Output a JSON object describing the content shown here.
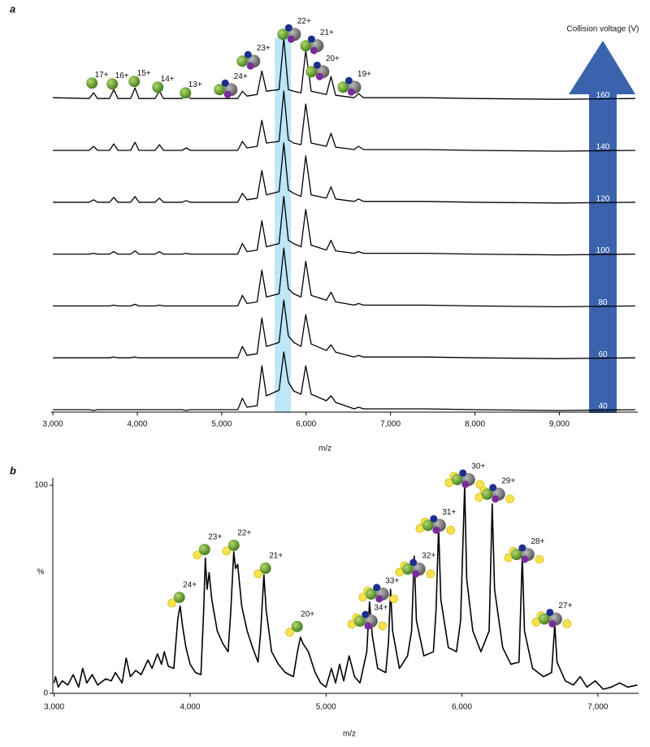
{
  "chart_data": [
    {
      "type": "line",
      "label": "a",
      "x_label": "m/z",
      "legend_title": "Collision voltage (V)",
      "x": [
        3000,
        3430,
        3482,
        3530,
        3670,
        3722,
        3770,
        3920,
        3973,
        4020,
        4210,
        4262,
        4310,
        4530,
        4580,
        4630,
        5190,
        5245,
        5300,
        5420,
        5476,
        5530,
        5680,
        5736,
        5790,
        5852,
        5940,
        5996,
        6060,
        6240,
        6295,
        6350,
        6570,
        6622,
        6680,
        7000,
        7400,
        8000,
        9000,
        9900
      ],
      "series": [
        {
          "name": "40",
          "color": "#000000",
          "values": [
            1,
            1,
            0,
            1,
            1,
            1,
            1,
            1,
            1,
            1,
            1,
            1,
            1,
            1,
            0,
            1,
            1,
            15,
            4,
            6,
            55,
            18,
            25,
            72,
            35,
            24,
            20,
            55,
            20,
            12,
            18,
            10,
            2,
            4,
            2,
            2,
            2,
            1,
            0,
            1
          ]
        },
        {
          "name": "60",
          "color": "#000000",
          "values": [
            1,
            1,
            1,
            1,
            1,
            2,
            1,
            1,
            2,
            1,
            1,
            1,
            1,
            1,
            1,
            1,
            1,
            15,
            4,
            6,
            50,
            15,
            20,
            72,
            28,
            20,
            15,
            54,
            18,
            10,
            17,
            8,
            2,
            4,
            2,
            2,
            2,
            1,
            0,
            1
          ]
        },
        {
          "name": "80",
          "color": "#000000",
          "values": [
            1,
            1,
            1,
            1,
            1,
            2,
            1,
            1,
            3,
            1,
            1,
            2,
            1,
            1,
            1,
            1,
            1,
            14,
            4,
            6,
            45,
            12,
            16,
            72,
            22,
            16,
            12,
            56,
            14,
            8,
            18,
            6,
            2,
            4,
            2,
            2,
            2,
            1,
            0,
            1
          ]
        },
        {
          "name": "100",
          "color": "#000000",
          "values": [
            1,
            1,
            2,
            1,
            1,
            4,
            1,
            1,
            5,
            1,
            1,
            4,
            1,
            1,
            2,
            1,
            1,
            14,
            4,
            6,
            42,
            10,
            14,
            72,
            18,
            14,
            10,
            56,
            12,
            6,
            18,
            5,
            2,
            4,
            2,
            2,
            2,
            1,
            0,
            1
          ]
        },
        {
          "name": "120",
          "color": "#000000",
          "values": [
            1,
            1,
            4,
            1,
            1,
            7,
            1,
            1,
            8,
            1,
            1,
            6,
            1,
            1,
            3,
            1,
            1,
            12,
            4,
            6,
            40,
            10,
            14,
            74,
            16,
            12,
            8,
            58,
            10,
            6,
            20,
            5,
            2,
            5,
            2,
            2,
            2,
            1,
            0,
            1
          ]
        },
        {
          "name": "140",
          "color": "#000000",
          "values": [
            1,
            1,
            6,
            1,
            1,
            9,
            1,
            1,
            11,
            1,
            1,
            8,
            1,
            1,
            4,
            1,
            1,
            12,
            4,
            6,
            38,
            10,
            12,
            74,
            14,
            10,
            8,
            58,
            10,
            6,
            22,
            5,
            2,
            6,
            2,
            2,
            2,
            1,
            0,
            1
          ]
        },
        {
          "name": "160",
          "color": "#000000",
          "values": [
            2,
            1,
            8,
            1,
            1,
            12,
            1,
            1,
            14,
            1,
            1,
            10,
            1,
            1,
            6,
            1,
            1,
            10,
            4,
            6,
            35,
            10,
            12,
            75,
            12,
            10,
            8,
            60,
            10,
            6,
            28,
            5,
            2,
            7,
            2,
            2,
            2,
            1,
            0,
            1
          ]
        }
      ],
      "xlim": [
        2980,
        9930
      ],
      "xticks": [
        {
          "value": 3000,
          "label": "3,000"
        },
        {
          "value": 4000,
          "label": "4,000"
        },
        {
          "value": 5000,
          "label": "5,000"
        },
        {
          "value": 6000,
          "label": "6,000"
        },
        {
          "value": 7000,
          "label": "7,000"
        },
        {
          "value": 8000,
          "label": "8,000"
        },
        {
          "value": 9000,
          "label": "9,000"
        }
      ],
      "highlight": {
        "x": [
          5630,
          5820
        ],
        "color": "#bde6f7"
      },
      "annotations": [
        {
          "text": "17+",
          "x": 3578,
          "y": 30
        },
        {
          "text": "16+",
          "x": 3819,
          "y": 29
        },
        {
          "text": "15+",
          "x": 4079,
          "y": 32
        },
        {
          "text": "14+",
          "x": 4358,
          "y": 25
        },
        {
          "text": "13+",
          "x": 4686,
          "y": 18
        },
        {
          "text": "24+",
          "x": 5225,
          "y": 28
        },
        {
          "text": "23+",
          "x": 5495,
          "y": 63
        },
        {
          "text": "22+",
          "x": 5977,
          "y": 96
        },
        {
          "text": "21+",
          "x": 6247,
          "y": 82
        },
        {
          "text": "20+",
          "x": 6314,
          "y": 50
        },
        {
          "text": "19+",
          "x": 6690,
          "y": 31
        }
      ]
    },
    {
      "type": "line",
      "label": "b",
      "x_label": "m/z",
      "y_label": "%",
      "x": [
        3000,
        3010,
        3030,
        3060,
        3100,
        3140,
        3180,
        3210,
        3240,
        3280,
        3320,
        3380,
        3420,
        3450,
        3500,
        3530,
        3560,
        3600,
        3640,
        3690,
        3720,
        3760,
        3790,
        3810,
        3840,
        3880,
        3910,
        3927,
        3945,
        3970,
        4000,
        4040,
        4080,
        4100,
        4112,
        4125,
        4140,
        4160,
        4200,
        4240,
        4280,
        4300,
        4321,
        4335,
        4350,
        4380,
        4420,
        4460,
        4500,
        4520,
        4543,
        4560,
        4600,
        4650,
        4700,
        4760,
        4790,
        4812,
        4830,
        4870,
        4920,
        4960,
        5000,
        5040,
        5070,
        5100,
        5130,
        5170,
        5210,
        5250,
        5300,
        5320,
        5340,
        5380,
        5440,
        5460,
        5475,
        5490,
        5540,
        5600,
        5630,
        5649,
        5665,
        5720,
        5790,
        5810,
        5828,
        5845,
        5900,
        5960,
        5990,
        6020,
        6035,
        6080,
        6140,
        6200,
        6223,
        6240,
        6300,
        6360,
        6420,
        6444,
        6460,
        6520,
        6600,
        6660,
        6683,
        6700,
        6760,
        6820,
        6870,
        6920,
        6980,
        7040,
        7100,
        7160,
        7220,
        7290
      ],
      "values": [
        5,
        8,
        3,
        6,
        4,
        9,
        3,
        12,
        5,
        9,
        4,
        7,
        6,
        10,
        5,
        17,
        8,
        11,
        9,
        16,
        12,
        19,
        14,
        20,
        13,
        12,
        36,
        42,
        32,
        22,
        14,
        10,
        9,
        40,
        65,
        50,
        58,
        45,
        30,
        24,
        20,
        40,
        68,
        60,
        62,
        42,
        30,
        22,
        15,
        30,
        57,
        40,
        20,
        14,
        10,
        8,
        20,
        27,
        24,
        20,
        10,
        5,
        3,
        12,
        5,
        14,
        6,
        18,
        8,
        5,
        20,
        44,
        28,
        12,
        10,
        25,
        50,
        30,
        12,
        18,
        30,
        66,
        35,
        18,
        20,
        40,
        80,
        45,
        22,
        20,
        35,
        100,
        55,
        30,
        20,
        30,
        91,
        50,
        22,
        14,
        15,
        66,
        30,
        12,
        8,
        10,
        33,
        15,
        6,
        4,
        8,
        3,
        6,
        2,
        3,
        5,
        3,
        4
      ],
      "color": "#000000",
      "xlim": [
        2990,
        7300
      ],
      "xticks": [
        {
          "value": 3000,
          "label": "3,000"
        },
        {
          "value": 4000,
          "label": "4,000"
        },
        {
          "value": 5000,
          "label": "5,000"
        },
        {
          "value": 6000,
          "label": "6,000"
        },
        {
          "value": 7000,
          "label": "7,000"
        }
      ],
      "ylim": [
        0,
        100
      ],
      "yticks": [
        0,
        100
      ],
      "annotations": [
        {
          "text": "24+",
          "x": 3998,
          "y": 52
        },
        {
          "text": "23+",
          "x": 4184,
          "y": 75
        },
        {
          "text": "22+",
          "x": 4399,
          "y": 77
        },
        {
          "text": "21+",
          "x": 4632,
          "y": 66
        },
        {
          "text": "20+",
          "x": 4865,
          "y": 38
        },
        {
          "text": "34+",
          "x": 5404,
          "y": 41
        },
        {
          "text": "33+",
          "x": 5487,
          "y": 54
        },
        {
          "text": "32+",
          "x": 5756,
          "y": 66
        },
        {
          "text": "31+",
          "x": 5906,
          "y": 87
        },
        {
          "text": "30+",
          "x": 6121,
          "y": 109
        },
        {
          "text": "29+",
          "x": 6342,
          "y": 102
        },
        {
          "text": "28+",
          "x": 6558,
          "y": 73
        },
        {
          "text": "27+",
          "x": 6761,
          "y": 42
        }
      ]
    }
  ]
}
